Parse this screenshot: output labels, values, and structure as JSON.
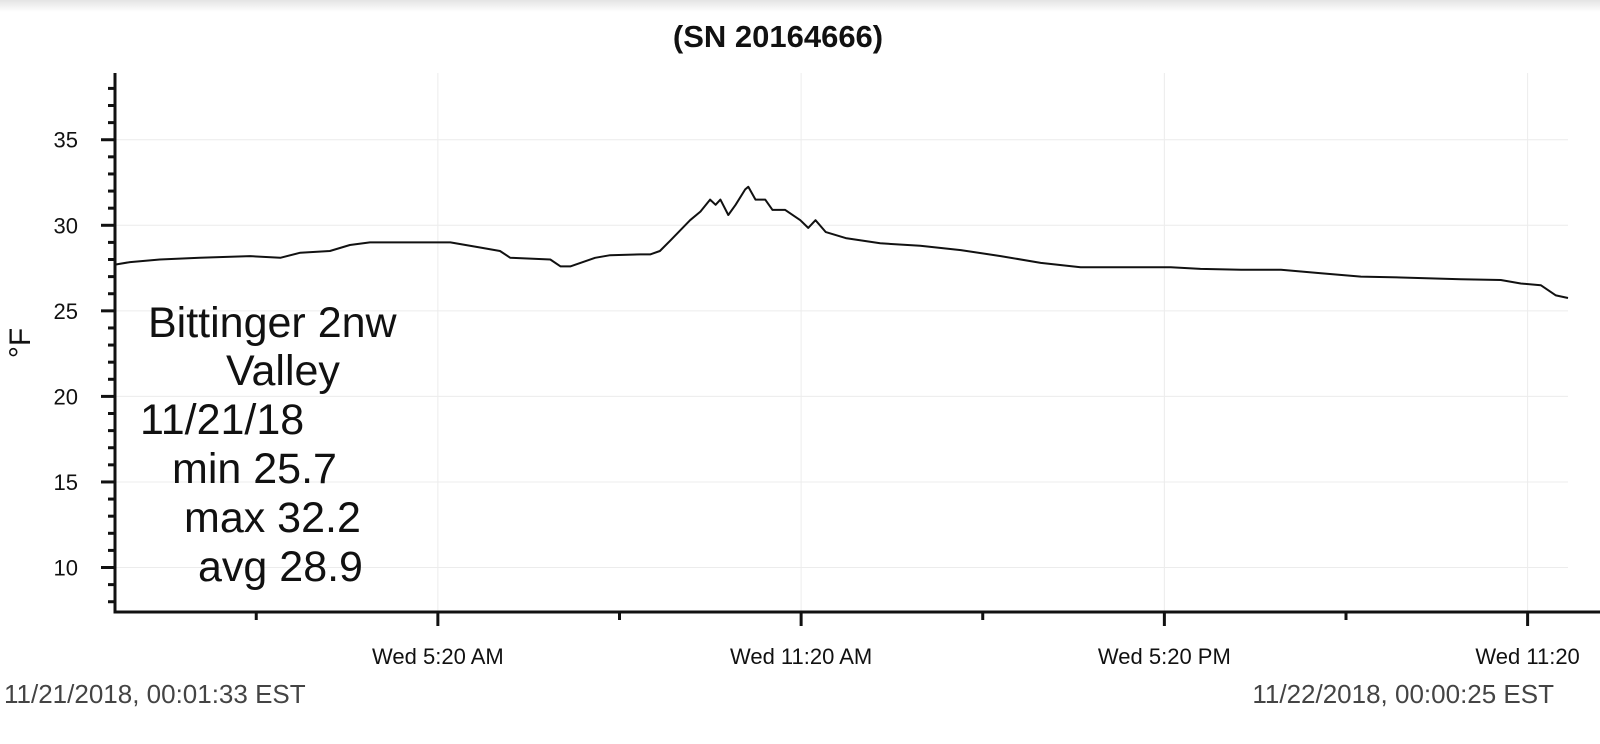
{
  "chart_data": {
    "type": "line",
    "title": "(SN 20164666)",
    "ylabel": "°F",
    "x": [
      0,
      0.25,
      0.74,
      1.4,
      2.23,
      2.73,
      3.06,
      3.55,
      3.88,
      4.21,
      4.55,
      5.54,
      6.03,
      6.36,
      6.53,
      7.19,
      7.36,
      7.52,
      7.93,
      8.18,
      8.68,
      8.84,
      9.0,
      9.17,
      9.5,
      9.67,
      9.83,
      9.92,
      10.0,
      10.13,
      10.25,
      10.41,
      10.46,
      10.58,
      10.74,
      10.86,
      11.07,
      11.32,
      11.45,
      11.57,
      11.74,
      12.07,
      12.64,
      13.3,
      13.97,
      14.63,
      15.29,
      15.95,
      16.6,
      17.44,
      17.93,
      18.6,
      19.26,
      19.92,
      20.58,
      21.24,
      22.23,
      22.89,
      23.22,
      23.55,
      23.8,
      24.0
    ],
    "series": [
      {
        "color": "#111111",
        "values": [
          27.7,
          27.85,
          28.0,
          28.1,
          28.2,
          28.1,
          28.4,
          28.5,
          28.85,
          29.0,
          29.0,
          29.0,
          28.7,
          28.5,
          28.1,
          28.0,
          27.6,
          27.6,
          28.1,
          28.25,
          28.3,
          28.3,
          28.5,
          29.1,
          30.3,
          30.8,
          31.5,
          31.2,
          31.5,
          30.6,
          31.2,
          32.1,
          32.25,
          31.5,
          31.5,
          30.9,
          30.9,
          30.3,
          29.85,
          30.3,
          29.6,
          29.25,
          28.95,
          28.8,
          28.55,
          28.2,
          27.8,
          27.55,
          27.55,
          27.55,
          27.45,
          27.4,
          27.4,
          27.2,
          27.0,
          26.95,
          26.85,
          26.8,
          26.6,
          26.5,
          25.9,
          25.75
        ]
      }
    ],
    "xlim": [
      0,
      24
    ],
    "xticks": [
      {
        "value": 5.333,
        "label": "Wed 5:20 AM"
      },
      {
        "value": 11.333,
        "label": "Wed 11:20 AM"
      },
      {
        "value": 17.333,
        "label": "Wed 5:20 PM"
      },
      {
        "value": 23.333,
        "label": "Wed 11:20"
      }
    ],
    "xminorticks": [
      2.333,
      8.333,
      14.333,
      20.333
    ],
    "ylim": [
      7.4,
      38.9
    ],
    "yticks": [
      10,
      15,
      20,
      25,
      30,
      35
    ],
    "yminorticks": [
      8,
      9,
      11,
      12,
      13,
      14,
      16,
      17,
      18,
      19,
      21,
      22,
      23,
      24,
      26,
      27,
      28,
      29,
      31,
      32,
      33,
      34,
      36,
      37,
      38
    ],
    "grid": true,
    "annotations": [
      "Bittinger 2nw",
      "Valley",
      "11/21/18",
      "min 25.7",
      "max 32.2",
      "avg 28.9"
    ],
    "start_time": "11/21/2018, 00:01:33 EST",
    "end_time": "11/22/2018, 00:00:25 EST"
  }
}
